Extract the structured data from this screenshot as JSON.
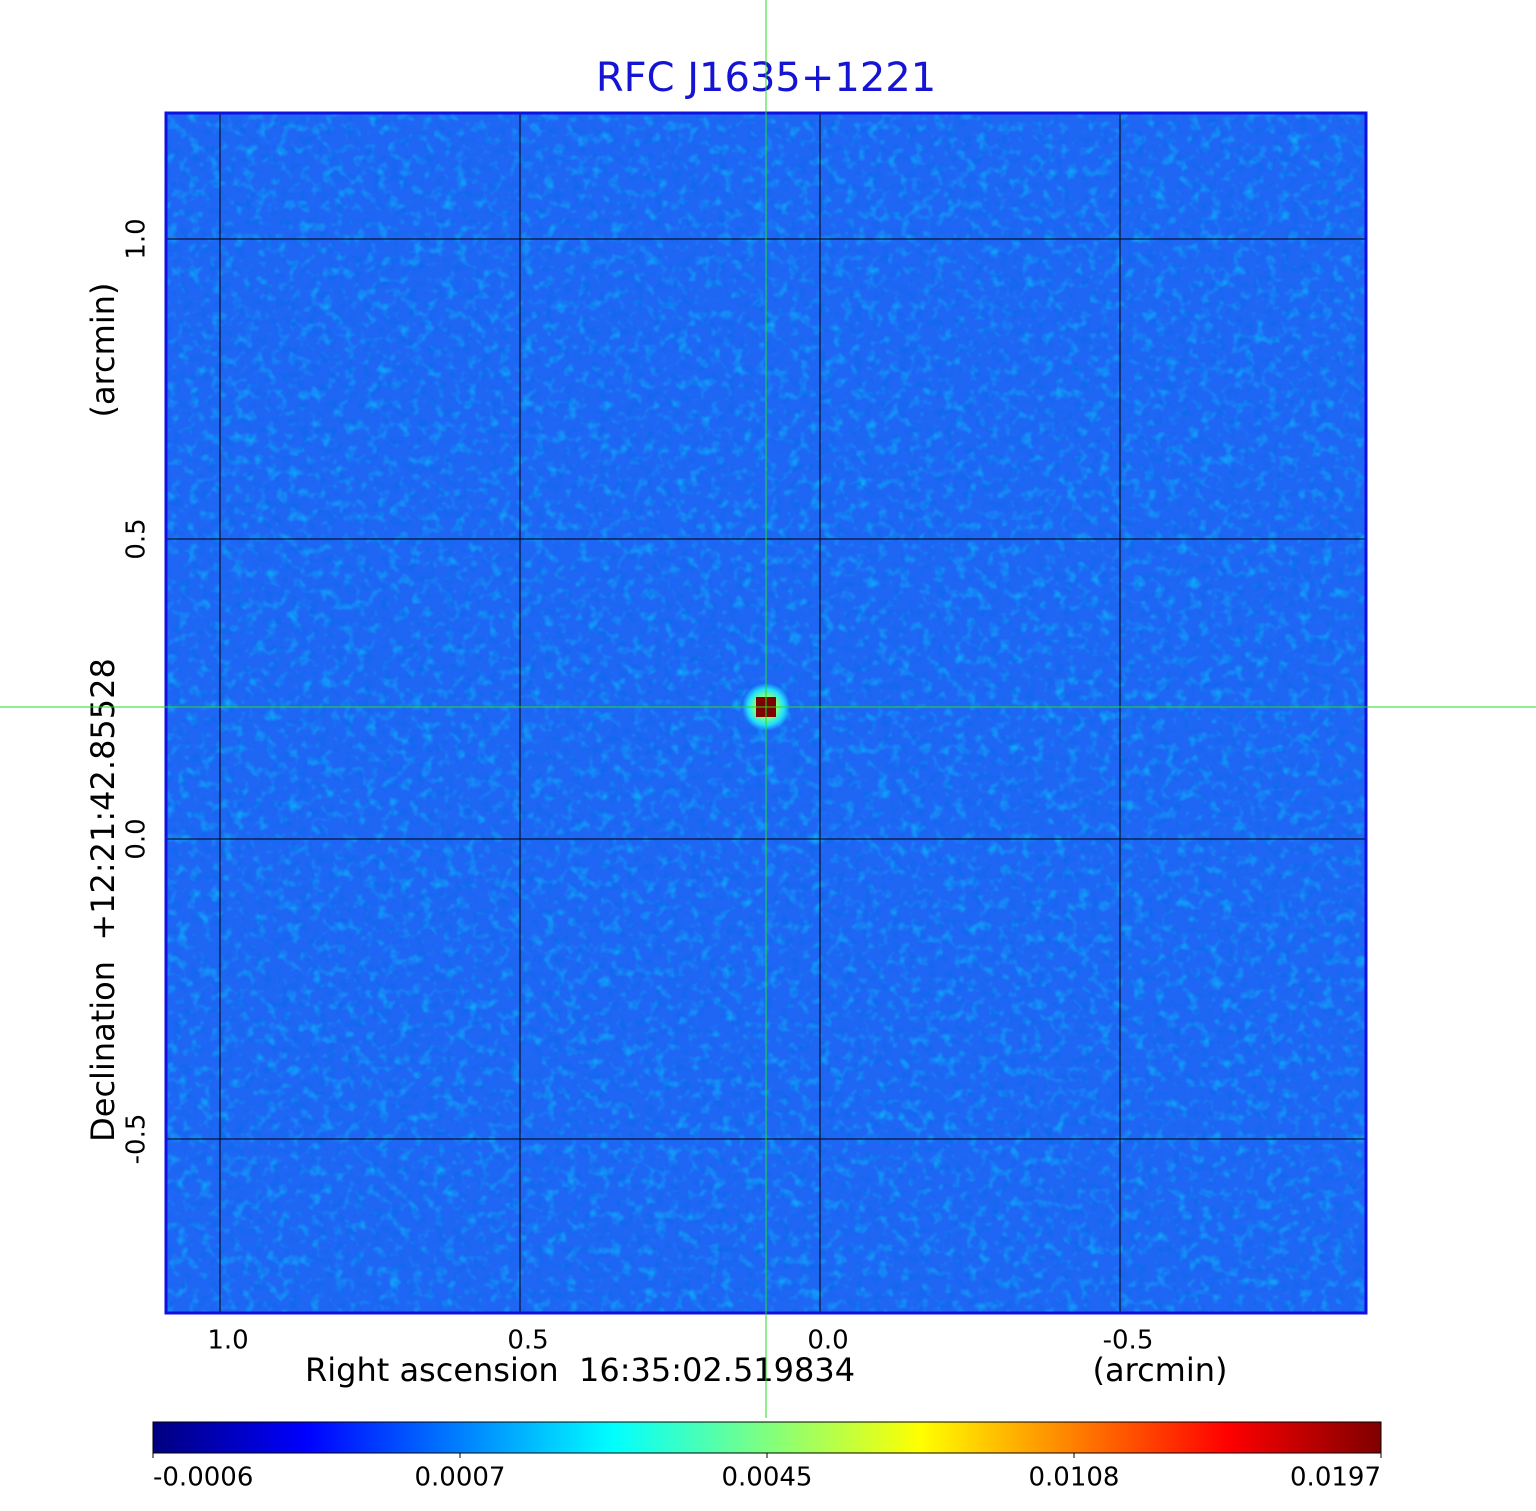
{
  "chart_data": {
    "type": "image",
    "title": "RFC J1635+1221",
    "x_label": "Right ascension  16:35:02.519834",
    "x_unit": "(arcmin)",
    "y_label": "Declination  +12:21:42.85528",
    "y_unit": "(arcmin)",
    "xlim": [
      1.09,
      -0.91
    ],
    "ylim": [
      -0.79,
      1.21
    ],
    "xticks": [
      {
        "value": 1,
        "label": "1.0"
      },
      0.5,
      {
        "value": 0,
        "label": "0.0"
      },
      -0.5
    ],
    "yticks": [
      -0.5,
      {
        "value": 0,
        "label": "0.0"
      },
      0.5,
      {
        "value": 1,
        "label": "1.0"
      }
    ],
    "grid": true,
    "background_color": "#1f66f4",
    "title_color": "#1414d2",
    "frame_color": "#1010e0",
    "crosshair_color": "#22dd22",
    "source": {
      "x": 0.09,
      "y": 0.22,
      "peak": 0.0197
    },
    "colorbar": {
      "colormap": "jet",
      "ticks": [
        -0.0006,
        0.0007,
        0.0045,
        0.0108,
        0.0197
      ]
    }
  }
}
